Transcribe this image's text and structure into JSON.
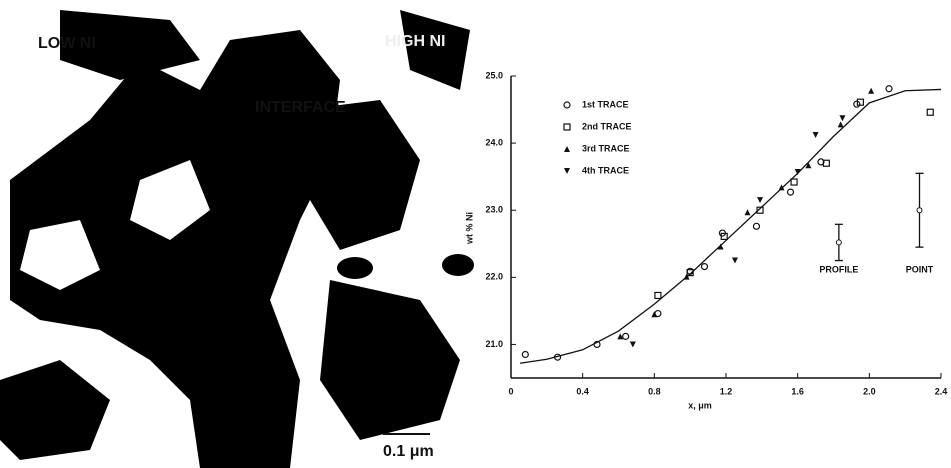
{
  "micrograph": {
    "low_label": "LOW NI",
    "high_label": "HIGH NI",
    "interface_label": "INTERFACE",
    "scale_label": "0.1 μm"
  },
  "chart_data": {
    "type": "scatter",
    "y_label": "wt % Ni",
    "x_label": "x, μm",
    "xlim": [
      0,
      2.4
    ],
    "ylim": [
      20.5,
      25.0
    ],
    "xticks": [
      {
        "value": 0,
        "label": "0"
      },
      0.4,
      0.8,
      1.2,
      1.6,
      {
        "value": 2.0,
        "label": "2.0"
      },
      2.4
    ],
    "yticks": [
      {
        "value": 21,
        "label": "21.0"
      },
      {
        "value": 22,
        "label": "22.0"
      },
      {
        "value": 23,
        "label": "23.0"
      },
      {
        "value": 24,
        "label": "24.0"
      },
      {
        "value": 25,
        "label": "25.0"
      }
    ],
    "series": [
      {
        "name": "1st TRACE",
        "marker": "circle",
        "color": "#111111",
        "x": [
          0.08,
          0.26,
          0.48,
          0.64,
          0.82,
          1.0,
          1.08,
          1.18,
          1.37,
          1.56,
          1.73,
          1.93,
          2.11
        ],
        "values": [
          20.85,
          20.81,
          21.0,
          21.12,
          21.46,
          22.09,
          22.16,
          22.66,
          22.76,
          23.27,
          23.72,
          24.58,
          24.81
        ]
      },
      {
        "name": "2nd TRACE",
        "marker": "square",
        "color": "#111111",
        "x": [
          0.82,
          1.0,
          1.19,
          1.39,
          1.58,
          1.76,
          1.95,
          2.34
        ],
        "values": [
          21.73,
          22.07,
          22.61,
          23.0,
          23.42,
          23.7,
          24.61,
          24.46
        ]
      },
      {
        "name": "3rd TRACE",
        "marker": "triangle-up",
        "color": "#111111",
        "x": [
          0.61,
          0.8,
          0.98,
          1.17,
          1.32,
          1.51,
          1.66,
          1.84,
          2.01
        ],
        "values": [
          21.12,
          21.45,
          22.01,
          22.46,
          22.97,
          23.34,
          23.67,
          24.28,
          24.78
        ]
      },
      {
        "name": "4th TRACE",
        "marker": "triangle-down",
        "color": "#111111",
        "x": [
          0.68,
          1.25,
          1.39,
          1.6,
          1.7,
          1.85
        ],
        "values": [
          21.0,
          22.25,
          23.15,
          23.57,
          24.12,
          24.37
        ]
      }
    ],
    "fit_curve": {
      "x": [
        0.05,
        0.2,
        0.4,
        0.6,
        0.8,
        1.0,
        1.2,
        1.4,
        1.6,
        1.8,
        2.0,
        2.2,
        2.4
      ],
      "y": [
        20.72,
        20.78,
        20.92,
        21.2,
        21.6,
        22.05,
        22.55,
        23.05,
        23.55,
        24.1,
        24.6,
        24.78,
        24.8
      ]
    },
    "error_bars": [
      {
        "label": "PROFILE",
        "x": 1.83,
        "y": 22.52,
        "error": 0.27
      },
      {
        "label": "POINT",
        "x": 2.28,
        "y": 23.0,
        "error": 0.55
      }
    ]
  }
}
